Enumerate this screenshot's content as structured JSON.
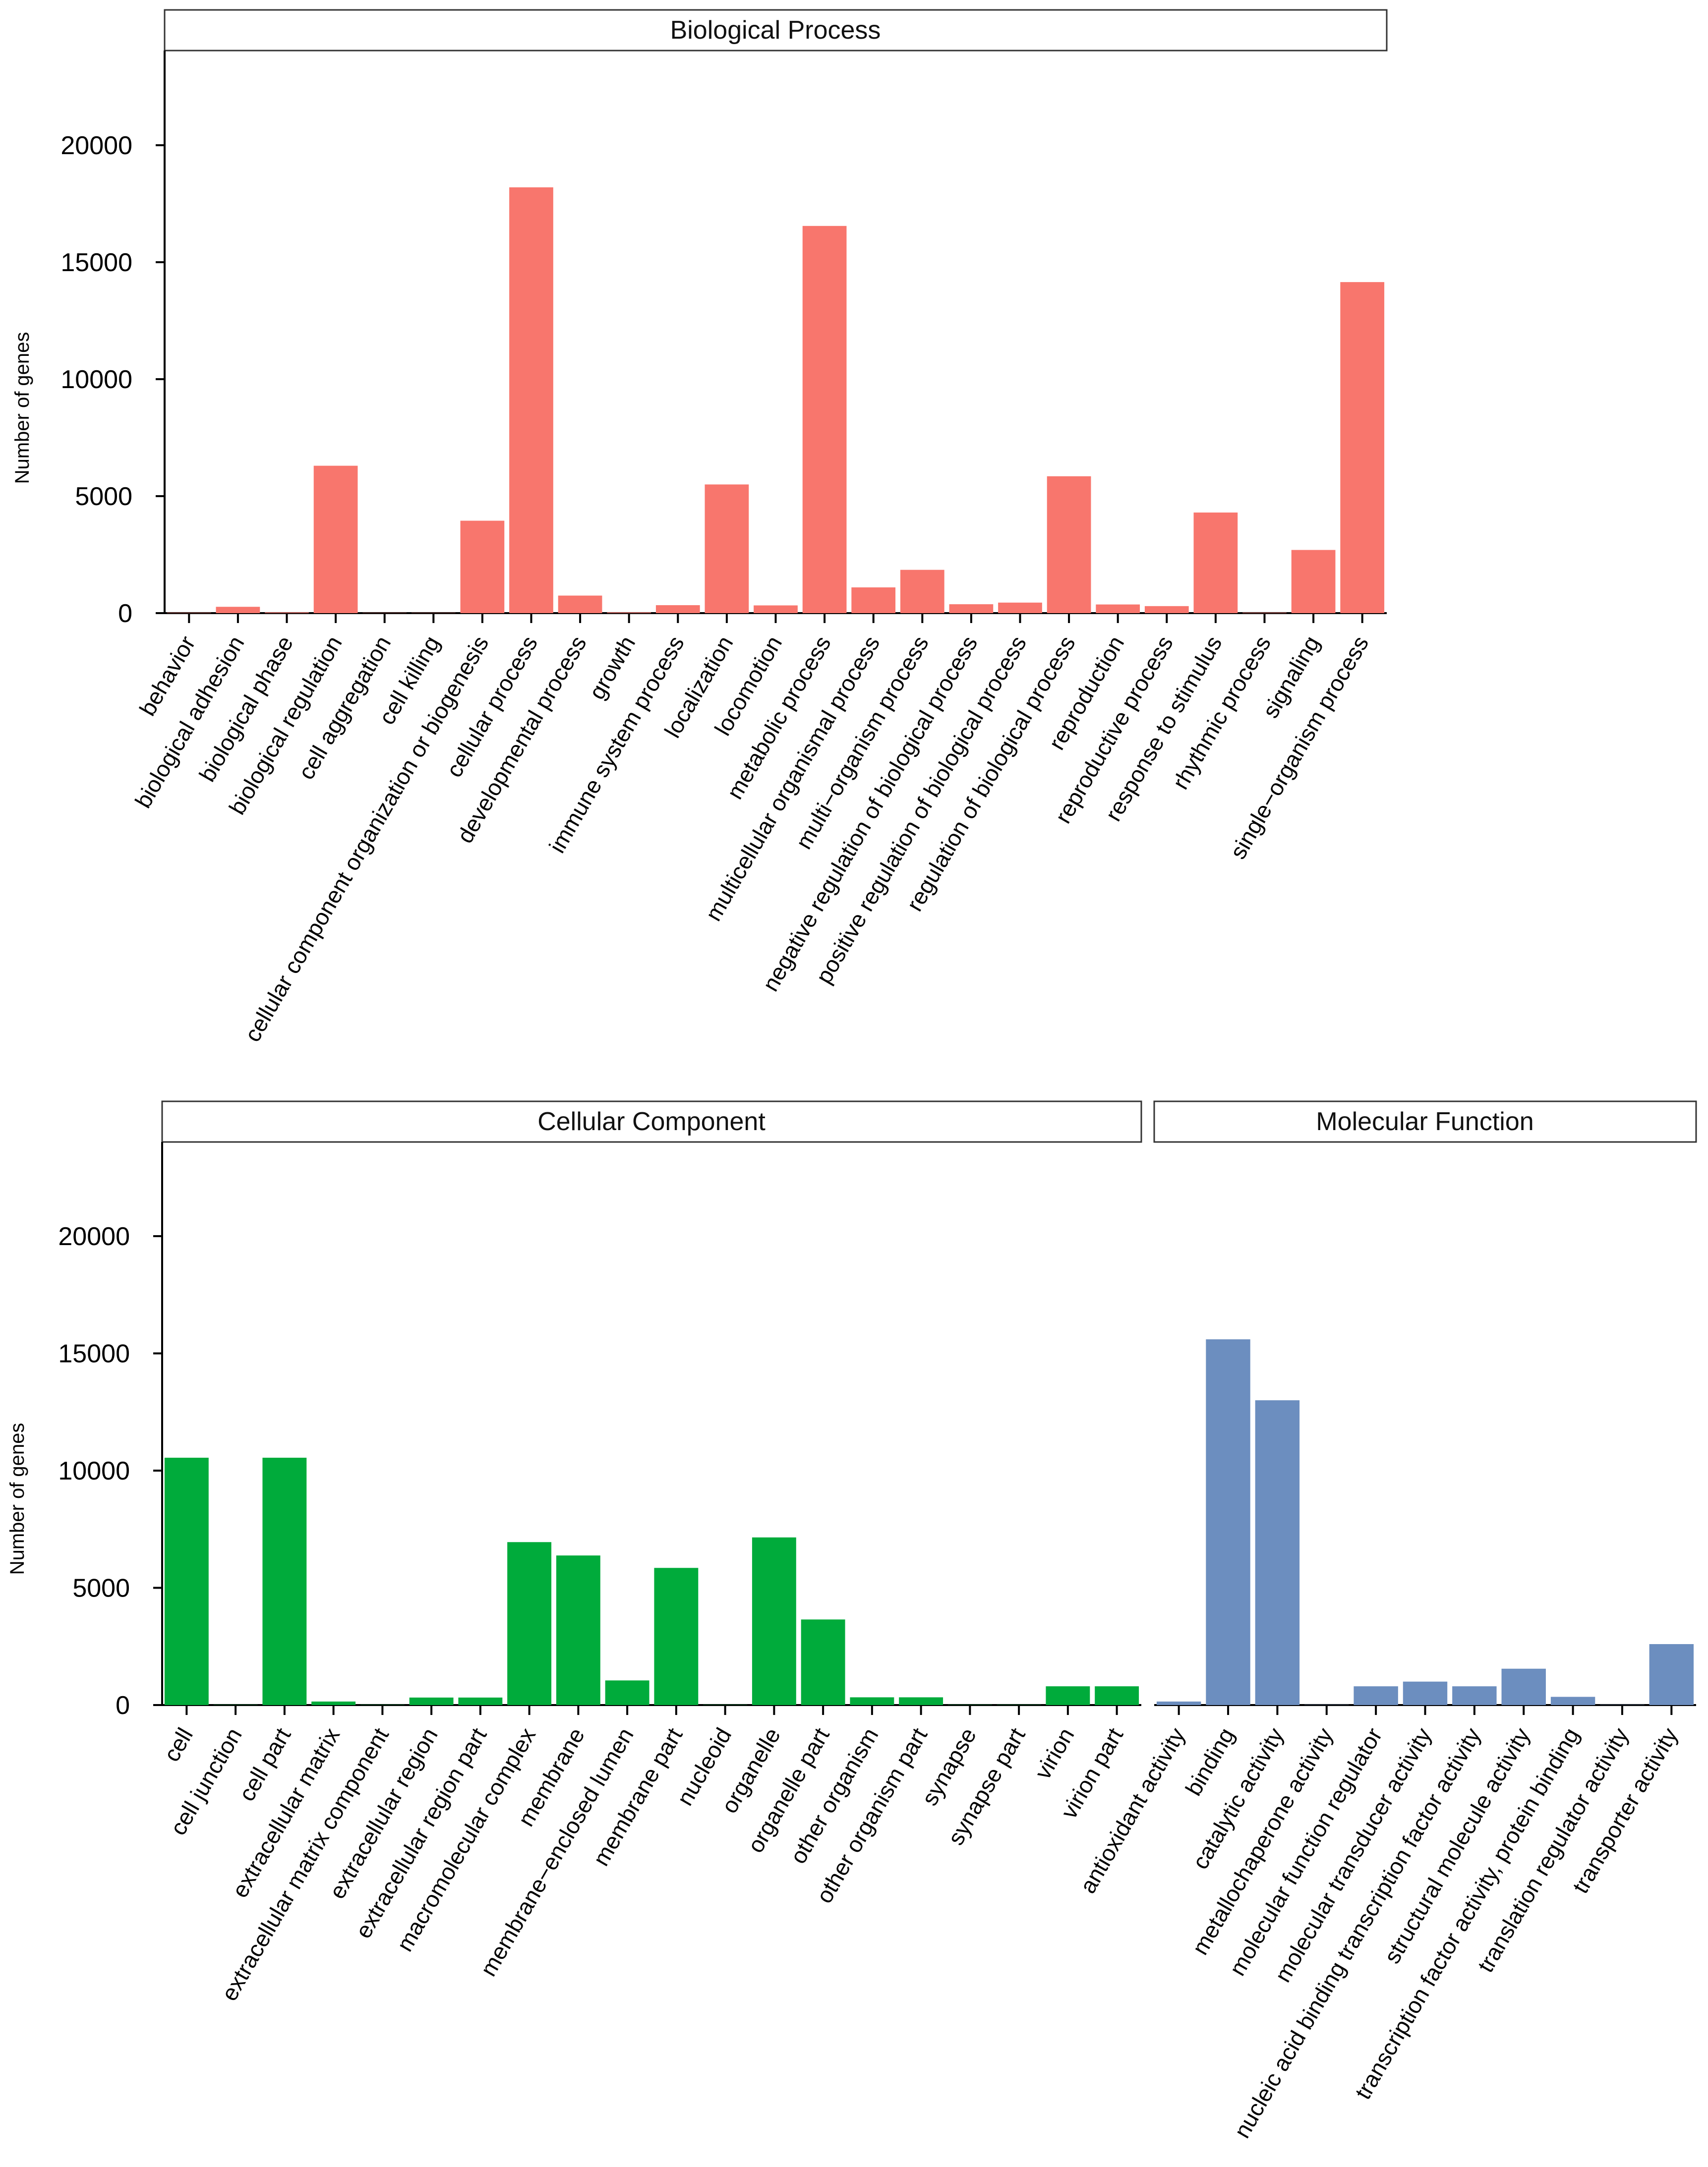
{
  "chart_data": [
    {
      "type": "bar",
      "title": "Biological Process",
      "ylabel": "Number of genes",
      "ylim": [
        0,
        24000
      ],
      "yticks": [
        "0",
        "5000",
        "10000",
        "15000",
        "20000"
      ],
      "color": "#F8766D",
      "categories": [
        "behavior",
        "biological adhesion",
        "biological phase",
        "biological regulation",
        "cell aggregation",
        "cell killing",
        "cellular component organization or biogenesis",
        "cellular process",
        "developmental process",
        "growth",
        "immune system process",
        "localization",
        "locomotion",
        "metabolic process",
        "multicellular organismal process",
        "multi−organism process",
        "negative regulation of biological process",
        "positive regulation of biological process",
        "regulation of biological process",
        "reproduction",
        "reproductive process",
        "response to stimulus",
        "rhythmic process",
        "signaling",
        "single−organism process"
      ],
      "values": [
        15,
        270,
        30,
        6300,
        10,
        10,
        3950,
        18200,
        750,
        30,
        340,
        5500,
        330,
        16550,
        1100,
        1850,
        380,
        450,
        5850,
        370,
        300,
        4300,
        20,
        2700,
        14150
      ]
    },
    {
      "type": "bar",
      "title": "Cellular Component",
      "ylabel": "Number of genes",
      "ylim": [
        0,
        24000
      ],
      "yticks": [
        "0",
        "5000",
        "10000",
        "15000",
        "20000"
      ],
      "color": "#00AB3B",
      "categories": [
        "cell",
        "cell junction",
        "cell part",
        "extracellular matrix",
        "extracellular matrix component",
        "extracellular region",
        "extracellular region part",
        "macromolecular complex",
        "membrane",
        "membrane−enclosed lumen",
        "membrane part",
        "nucleoid",
        "organelle",
        "organelle part",
        "other organism",
        "other organism part",
        "synapse",
        "synapse part",
        "virion",
        "virion part"
      ],
      "values": [
        10550,
        10,
        10550,
        150,
        10,
        320,
        320,
        6950,
        6380,
        1050,
        5850,
        10,
        7150,
        3650,
        330,
        330,
        10,
        10,
        800,
        800
      ]
    },
    {
      "type": "bar",
      "title": "Molecular Function",
      "ylabel": "",
      "ylim": [
        0,
        24000
      ],
      "yticks": [],
      "color": "#6C8EBF",
      "categories": [
        "antioxidant activity",
        "binding",
        "catalytic activity",
        "metallochaperone activity",
        "molecular function regulator",
        "molecular transducer activity",
        "nucleic acid binding transcription factor activity",
        "structural molecule activity",
        "transcription factor activity, protein binding",
        "translation regulator activity",
        "transporter activity"
      ],
      "values": [
        150,
        15600,
        13000,
        10,
        800,
        1000,
        800,
        1550,
        350,
        10,
        2600
      ]
    }
  ]
}
